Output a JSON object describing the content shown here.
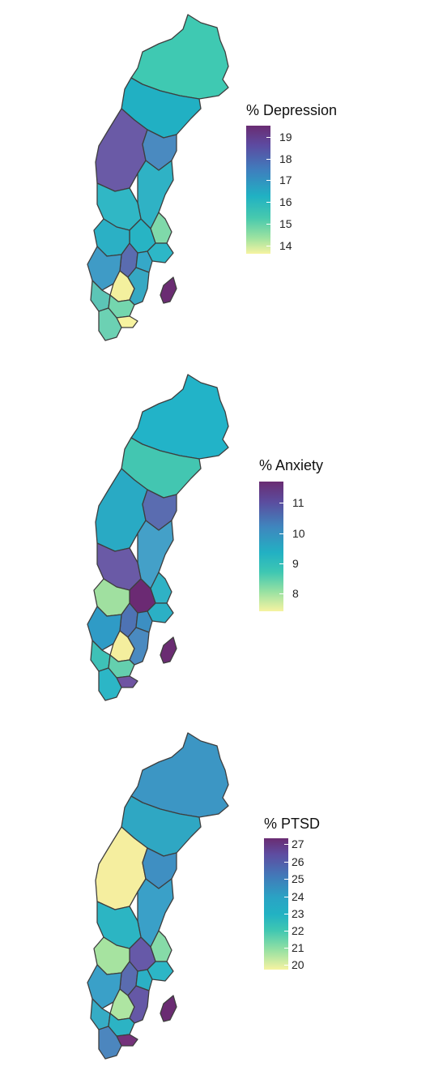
{
  "panels": [
    {
      "legend_title": "% Depression",
      "ticks": [
        "19",
        "18",
        "17",
        "16",
        "15",
        "14"
      ],
      "fills": {
        "north": "#3fc9b2",
        "v1": "#21b0c3",
        "west": "#6a5aa6",
        "v2": "#2fb2c5",
        "east1": "#4a8ac0",
        "mid1": "#30b7c5",
        "mid2": "#27b4c4",
        "ea2": "#7fd9aa",
        "sw1": "#2bb0c5",
        "c1": "#5a6cb0",
        "c2": "#35a8c8",
        "c3": "#3f9bc6",
        "c4": "#f3f09e",
        "c5": "#5cc5b6",
        "s1": "#74d6ae",
        "s2": "#f7f3a0",
        "s3": "#6cd1b3",
        "gotland": "#6a2c72",
        "st1": "#2db7c7",
        "st2": "#36a8c3"
      }
    },
    {
      "legend_title": "% Anxiety",
      "ticks": [
        "11",
        "10",
        "9",
        "8"
      ],
      "fills": {
        "north": "#22b3c8",
        "v1": "#43c6b1",
        "west": "#29aac4",
        "v2": "#44a0c8",
        "east1": "#5a6cb0",
        "mid1": "#6a5aa6",
        "mid2": "#6b2a73",
        "ea2": "#2fb2c5",
        "sw1": "#a0e0a0",
        "c1": "#4e73b4",
        "c2": "#3c8fc2",
        "c3": "#2f9bc6",
        "c4": "#f4ee9e",
        "c5": "#3ec1b7",
        "s1": "#64cfae",
        "s2": "#6f54a2",
        "s3": "#2cb6c6",
        "gotland": "#6a2c72",
        "st1": "#2bb0c5",
        "st2": "#4a8ac0"
      }
    },
    {
      "legend_title": "% PTSD",
      "ticks": [
        "27",
        "26",
        "25",
        "24",
        "23",
        "22",
        "21",
        "20"
      ],
      "fills": {
        "north": "#3c96c4",
        "v1": "#2fa7c3",
        "west": "#f5ee9f",
        "v2": "#3aa0c8",
        "east1": "#3f8fc2",
        "mid1": "#2cb5c3",
        "mid2": "#6659a8",
        "ea2": "#86dba8",
        "sw1": "#a6e3a0",
        "c1": "#5a6cb0",
        "c2": "#2bb0c5",
        "c3": "#3aa0c8",
        "c4": "#aee5a2",
        "c5": "#36acc5",
        "s1": "#2cb3c4",
        "s2": "#74327a",
        "s3": "#4c86be",
        "gotland": "#6a2c72",
        "st1": "#2cb6c6",
        "st2": "#6558a6"
      }
    }
  ]
}
